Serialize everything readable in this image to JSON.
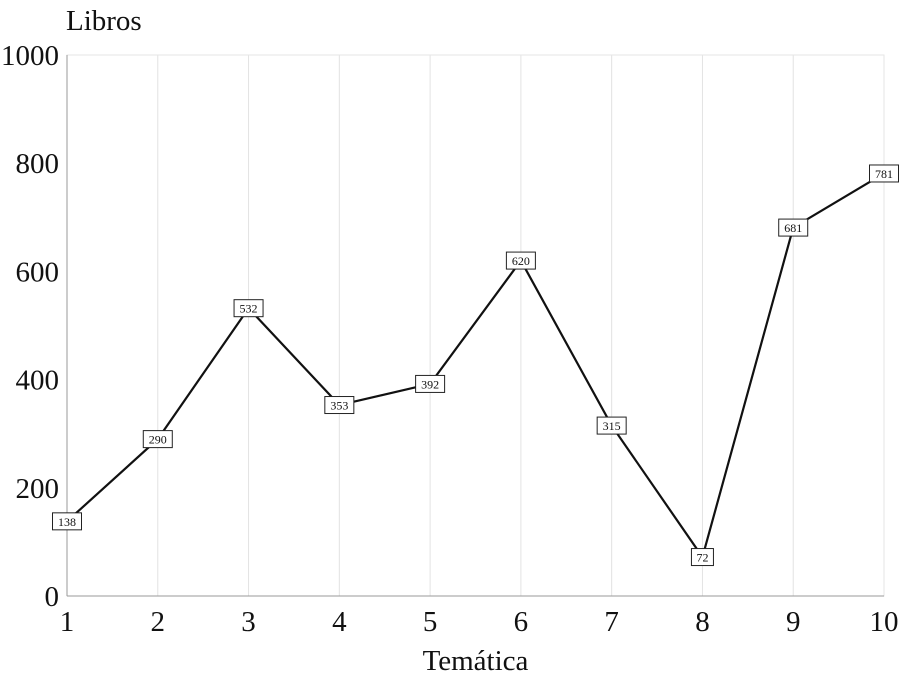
{
  "chart_data": {
    "type": "line",
    "ylabel": "Libros",
    "xlabel": "Temática",
    "x": [
      1,
      2,
      3,
      4,
      5,
      6,
      7,
      8,
      9,
      10
    ],
    "series": [
      {
        "values": [
          138,
          290,
          532,
          353,
          392,
          620,
          315,
          72,
          681,
          781
        ]
      }
    ],
    "xlim": [
      1,
      10
    ],
    "ylim": [
      0,
      1000
    ],
    "y_ticks": [
      0,
      200,
      400,
      600,
      800,
      1000
    ],
    "x_ticks": [
      1,
      2,
      3,
      4,
      5,
      6,
      7,
      8,
      9,
      10
    ],
    "grid": "vertical gridlines only, light",
    "data_labels": true,
    "line_color": "#111111"
  }
}
